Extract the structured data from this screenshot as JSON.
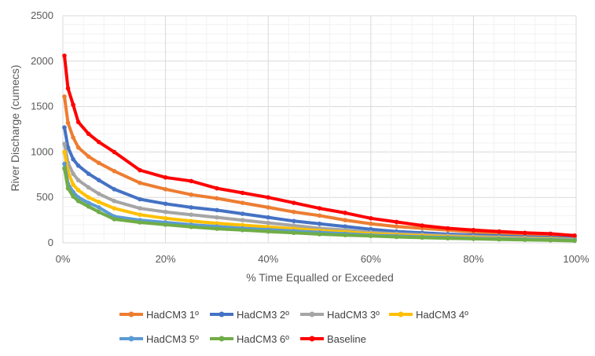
{
  "chart_data": {
    "type": "line",
    "title": "",
    "xlabel": "% Time Equalled or Exceeded",
    "ylabel": "River Discharge (cumecs)",
    "xlim": [
      0,
      100
    ],
    "ylim": [
      0,
      2500
    ],
    "x_ticks": [
      "0%",
      "20%",
      "40%",
      "60%",
      "80%",
      "100%"
    ],
    "y_ticks": [
      "0",
      "500",
      "1000",
      "1500",
      "2000",
      "2500"
    ],
    "grid": true,
    "legend_position": "bottom",
    "x": [
      0.3,
      1,
      2,
      3,
      5,
      7,
      10,
      15,
      20,
      25,
      30,
      35,
      40,
      45,
      50,
      55,
      60,
      65,
      70,
      75,
      80,
      85,
      90,
      95,
      99.7
    ],
    "series": [
      {
        "name": "HadCM3 1º",
        "color": "#ED7D31",
        "values": [
          1610,
          1320,
          1160,
          1050,
          950,
          880,
          790,
          660,
          590,
          530,
          490,
          440,
          390,
          340,
          300,
          250,
          210,
          180,
          160,
          140,
          120,
          105,
          90,
          80,
          70
        ]
      },
      {
        "name": "HadCM3 2º",
        "color": "#4472C4",
        "values": [
          1270,
          1050,
          920,
          850,
          760,
          690,
          590,
          480,
          430,
          390,
          360,
          320,
          280,
          240,
          210,
          180,
          150,
          125,
          110,
          95,
          85,
          75,
          65,
          58,
          50
        ]
      },
      {
        "name": "HadCM3 3º",
        "color": "#A5A5A5",
        "values": [
          1090,
          880,
          760,
          690,
          610,
          540,
          460,
          380,
          340,
          310,
          280,
          250,
          220,
          190,
          160,
          140,
          115,
          100,
          90,
          80,
          70,
          62,
          55,
          48,
          40
        ]
      },
      {
        "name": "HadCM3 4º",
        "color": "#FFC000",
        "values": [
          1000,
          780,
          640,
          580,
          500,
          450,
          380,
          310,
          270,
          240,
          215,
          195,
          175,
          155,
          135,
          120,
          100,
          88,
          78,
          68,
          60,
          53,
          47,
          42,
          35
        ]
      },
      {
        "name": "HadCM3 5º",
        "color": "#5B9BD5",
        "values": [
          870,
          650,
          560,
          500,
          440,
          390,
          290,
          250,
          225,
          200,
          180,
          160,
          145,
          130,
          115,
          100,
          85,
          75,
          65,
          58,
          50,
          45,
          40,
          35,
          30
        ]
      },
      {
        "name": "HadCM3 6º",
        "color": "#70AD47",
        "values": [
          820,
          600,
          510,
          460,
          400,
          340,
          260,
          225,
          200,
          175,
          155,
          140,
          125,
          110,
          95,
          85,
          75,
          65,
          57,
          50,
          44,
          38,
          33,
          28,
          22
        ]
      },
      {
        "name": "Baseline",
        "color": "#FF0000",
        "values": [
          2060,
          1700,
          1520,
          1330,
          1200,
          1110,
          1000,
          800,
          720,
          680,
          600,
          550,
          500,
          440,
          380,
          330,
          270,
          230,
          190,
          160,
          140,
          125,
          110,
          100,
          80
        ]
      }
    ]
  }
}
